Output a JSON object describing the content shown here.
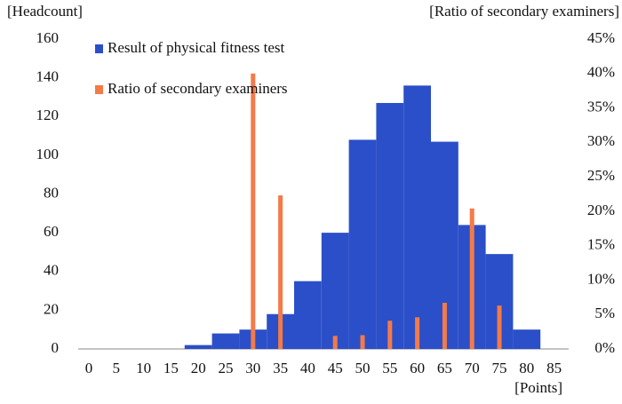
{
  "chart_data": {
    "type": "bar",
    "ylabel": "[Headcount]",
    "y2label": "[Ratio of secondary examiners]",
    "xlabel": "[Points]",
    "categories": [
      "0",
      "5",
      "10",
      "15",
      "20",
      "25",
      "30",
      "35",
      "40",
      "45",
      "50",
      "55",
      "60",
      "65",
      "70",
      "75",
      "80",
      "85"
    ],
    "series": [
      {
        "name": "Result of physical fitness test",
        "color": "#2b4fc8",
        "kind": "histogram",
        "values": [
          0,
          0,
          0,
          0,
          2,
          8,
          10,
          18,
          35,
          60,
          108,
          127,
          136,
          107,
          64,
          49,
          10,
          null
        ]
      },
      {
        "name": "Ratio of secondary examiners",
        "color": "#f47a48",
        "axis": "y2",
        "kind": "spike",
        "values": [
          null,
          null,
          null,
          null,
          null,
          null,
          40,
          22.3,
          null,
          1.9,
          2,
          4.1,
          4.6,
          6.7,
          20.4,
          6.3,
          null,
          null
        ]
      }
    ],
    "ylim": [
      0,
      160
    ],
    "yticks": [
      0,
      20,
      40,
      60,
      80,
      100,
      120,
      140,
      160
    ],
    "y2lim": [
      0,
      45
    ],
    "y2ticks": [
      {
        "value": 0,
        "label": "0%"
      },
      {
        "value": 5,
        "label": "5%"
      },
      {
        "value": 10,
        "label": "10%"
      },
      {
        "value": 15,
        "label": "15%"
      },
      {
        "value": 20,
        "label": "20%"
      },
      {
        "value": 25,
        "label": "25%"
      },
      {
        "value": 30,
        "label": "30%"
      },
      {
        "value": 35,
        "label": "35%"
      },
      {
        "value": 40,
        "label": "40%"
      },
      {
        "value": 45,
        "label": "45%"
      }
    ]
  }
}
